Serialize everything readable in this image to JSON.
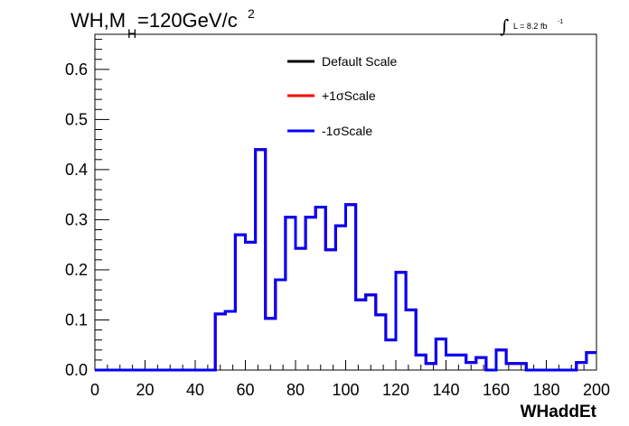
{
  "header": {
    "title_main": "WH,M",
    "title_sub": "H",
    "title_rest": "=120GeV/c",
    "title_sup": "2",
    "lumi_text": "L = 8.2 fb",
    "lumi_sup": "-1"
  },
  "colors": {
    "default_scale": "#000000",
    "plus_sigma": "#ff0000",
    "minus_sigma": "#0000ff"
  },
  "chart_data": {
    "type": "line",
    "style": "step-histogram",
    "xlabel": "WHaddEt",
    "ylabel": "",
    "xlim": [
      0,
      200
    ],
    "ylim": [
      0,
      0.67
    ],
    "xticks": [
      "0",
      "20",
      "40",
      "60",
      "80",
      "100",
      "120",
      "140",
      "160",
      "180",
      "200"
    ],
    "yticks": [
      "0.0",
      "0.1",
      "0.2",
      "0.3",
      "0.4",
      "0.5",
      "0.6"
    ],
    "legend_position": "top-center",
    "bin_edges": [
      0,
      48,
      52,
      56,
      60,
      64,
      68,
      72,
      76,
      80,
      84,
      88,
      92,
      96,
      100,
      104,
      108,
      112,
      116,
      120,
      124,
      128,
      132,
      136,
      140,
      144,
      148,
      152,
      156,
      160,
      164,
      168,
      172,
      176,
      180,
      184,
      188,
      192,
      196,
      200
    ],
    "series": [
      {
        "name": "Default Scale",
        "color": "#000000",
        "values": [
          0.0,
          0.112,
          0.117,
          0.27,
          0.255,
          0.44,
          0.103,
          0.18,
          0.305,
          0.243,
          0.305,
          0.325,
          0.24,
          0.288,
          0.33,
          0.14,
          0.15,
          0.11,
          0.06,
          0.195,
          0.12,
          0.03,
          0.013,
          0.062,
          0.03,
          0.03,
          0.015,
          0.025,
          0.0,
          0.04,
          0.013,
          0.013,
          0.0,
          0.0,
          0.0,
          0.0,
          0.0,
          0.015,
          0.035
        ]
      },
      {
        "name": "+1σScale",
        "color": "#ff0000",
        "values": [
          0.0,
          0.112,
          0.117,
          0.27,
          0.255,
          0.44,
          0.103,
          0.18,
          0.305,
          0.243,
          0.305,
          0.325,
          0.24,
          0.288,
          0.33,
          0.14,
          0.15,
          0.11,
          0.06,
          0.195,
          0.12,
          0.03,
          0.013,
          0.062,
          0.03,
          0.03,
          0.015,
          0.025,
          0.0,
          0.04,
          0.013,
          0.013,
          0.0,
          0.0,
          0.0,
          0.0,
          0.0,
          0.015,
          0.035
        ]
      },
      {
        "name": "-1σScale",
        "color": "#0000ff",
        "values": [
          0.0,
          0.112,
          0.117,
          0.27,
          0.255,
          0.44,
          0.103,
          0.18,
          0.305,
          0.243,
          0.305,
          0.325,
          0.24,
          0.288,
          0.33,
          0.14,
          0.15,
          0.11,
          0.06,
          0.195,
          0.12,
          0.03,
          0.013,
          0.062,
          0.03,
          0.03,
          0.015,
          0.025,
          0.0,
          0.04,
          0.013,
          0.013,
          0.0,
          0.0,
          0.0,
          0.0,
          0.0,
          0.015,
          0.035
        ]
      }
    ]
  }
}
